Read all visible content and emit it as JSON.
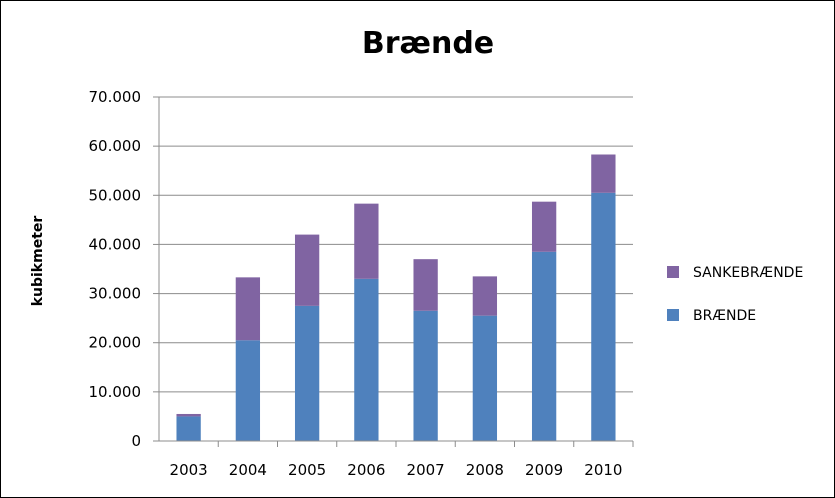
{
  "chart_data": {
    "type": "bar",
    "stacked": true,
    "title": "Brænde",
    "xlabel": "",
    "ylabel": "kubikmeter",
    "categories": [
      "2003",
      "2004",
      "2005",
      "2006",
      "2007",
      "2008",
      "2009",
      "2010"
    ],
    "series": [
      {
        "name": "BRÆNDE",
        "color": "#4f81bd",
        "values": [
          5000,
          20500,
          27500,
          33000,
          26500,
          25500,
          38500,
          50500
        ]
      },
      {
        "name": "SANKEBRÆNDE",
        "color": "#8064a2",
        "values": [
          500,
          12800,
          14500,
          15300,
          10500,
          8000,
          10200,
          7800
        ]
      }
    ],
    "ylim": [
      0,
      70000
    ],
    "yticks": [
      "0",
      "10.000",
      "20.000",
      "30.000",
      "40.000",
      "50.000",
      "60.000",
      "70.000"
    ],
    "grid": true,
    "legend_position": "right",
    "legend_order": [
      "SANKEBRÆNDE",
      "BRÆNDE"
    ]
  }
}
